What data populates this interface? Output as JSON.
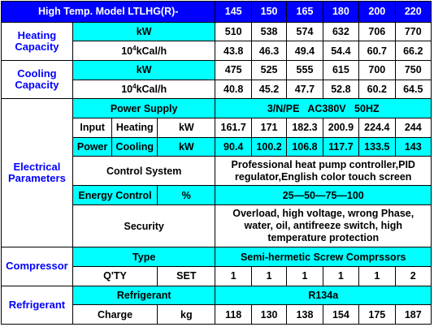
{
  "header": {
    "title": "High Temp. Model LTLHG(R)-",
    "models": [
      "145",
      "150",
      "165",
      "180",
      "200",
      "220"
    ]
  },
  "heating_capacity": {
    "label": "Heating Capacity",
    "kw_unit": "kW",
    "kw_values": [
      "510",
      "538",
      "574",
      "632",
      "706",
      "770"
    ],
    "kcal_unit_base": "10",
    "kcal_unit_exp": "4",
    "kcal_unit_rest": "kCal/h",
    "kcal_values": [
      "43.8",
      "46.3",
      "49.4",
      "54.4",
      "60.7",
      "66.2"
    ]
  },
  "cooling_capacity": {
    "label": "Cooling Capacity",
    "kw_unit": "kW",
    "kw_values": [
      "475",
      "525",
      "555",
      "615",
      "700",
      "750"
    ],
    "kcal_unit_base": "10",
    "kcal_unit_exp": "4",
    "kcal_unit_rest": "kCal/h",
    "kcal_values": [
      "40.8",
      "45.2",
      "47.7",
      "52.8",
      "60.2",
      "64.5"
    ]
  },
  "electrical": {
    "label": "Electrical Parameters",
    "power_supply_label": "Power Supply",
    "power_supply_value": "3/N/PE   AC380V   50HZ",
    "input_label": "Input",
    "power_label": "Power",
    "heating_label": "Heating",
    "cooling_label": "Cooling",
    "kw_unit": "kW",
    "heating_power_values": [
      "161.7",
      "171",
      "182.3",
      "200.9",
      "224.4",
      "244"
    ],
    "cooling_power_values": [
      "90.4",
      "100.2",
      "106.8",
      "117.7",
      "133.5",
      "143"
    ],
    "control_system_label": "Control System",
    "control_system_value": "Professional heat pump controller,PID regulator,English color touch screen",
    "energy_control_label": "Energy Control",
    "energy_control_unit": "%",
    "energy_control_value": "25—50—75—100",
    "security_label": "Security",
    "security_value": "Overload, high voltage, wrong Phase, water, oil, antifreeze switch, high temperature protection"
  },
  "compressor": {
    "label": "Compressor",
    "type_label": "Type",
    "type_value": "Semi-hermetic Screw Comprssors",
    "qty_label": "Q'TY",
    "qty_unit": "SET",
    "qty_values": [
      "1",
      "1",
      "1",
      "1",
      "1",
      "2"
    ]
  },
  "refrigerant": {
    "label": "Refrigerant",
    "refrigerant_label": "Refrigerant",
    "refrigerant_value": "R134a",
    "charge_label": "Charge",
    "charge_unit": "kg",
    "charge_values": [
      "118",
      "130",
      "138",
      "154",
      "175",
      "187"
    ]
  },
  "colors": {
    "header_bg": "#0000ff",
    "header_text": "#ffffff",
    "highlight_bg": "#00ffff",
    "body_bg": "#ffffff",
    "section_label_text": "#0000ff",
    "border": "#000000"
  }
}
